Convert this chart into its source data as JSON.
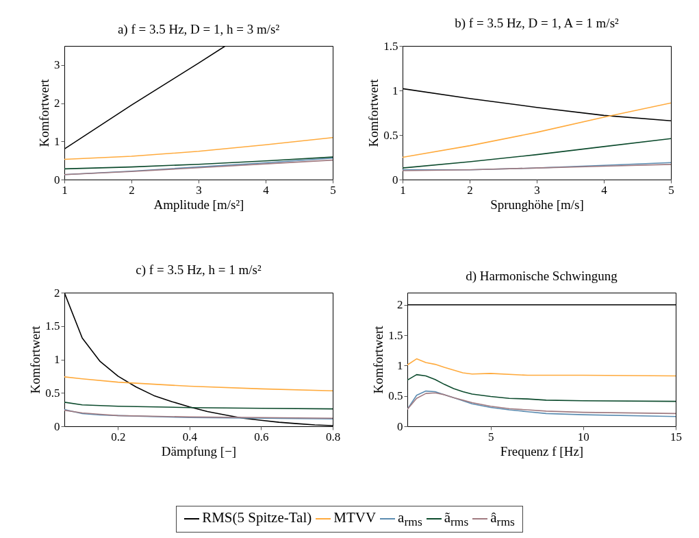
{
  "chart_data": [
    {
      "type": "line",
      "title": "a) f = 3.5 Hz, D = 1, h = 3 m/s²",
      "xlabel": "Amplitude [m/s²]",
      "ylabel": "Komfortwert",
      "xlim": [
        1,
        5
      ],
      "xticks": [
        1,
        2,
        3,
        4,
        5
      ],
      "ylim": [
        0,
        3.5
      ],
      "yticks": [
        0,
        1,
        2,
        3
      ],
      "legend": "bottom",
      "series": [
        {
          "name": "RMS(5 Spitze-Tal)",
          "color": "#000000",
          "x": [
            1,
            2,
            3,
            3.4
          ],
          "values": [
            0.8,
            1.95,
            3.05,
            3.5
          ]
        },
        {
          "name": "MTVV",
          "color": "#ffaa3c",
          "x": [
            1,
            2,
            3,
            4,
            5
          ],
          "values": [
            0.53,
            0.61,
            0.74,
            0.91,
            1.1
          ]
        },
        {
          "name": "a$_{rms}$",
          "color": "#5a8bb0",
          "x": [
            1,
            2,
            3,
            4,
            5
          ],
          "values": [
            0.13,
            0.22,
            0.33,
            0.44,
            0.56
          ]
        },
        {
          "name": "ã$_{rms}$",
          "color": "#0b4a2c",
          "x": [
            1,
            2,
            3,
            4,
            5
          ],
          "values": [
            0.28,
            0.33,
            0.4,
            0.49,
            0.59
          ]
        },
        {
          "name": "â$_{rms}$",
          "color": "#a07a80",
          "x": [
            1,
            2,
            3,
            4,
            5
          ],
          "values": [
            0.13,
            0.21,
            0.31,
            0.41,
            0.51
          ]
        }
      ]
    },
    {
      "type": "line",
      "title": "b) f = 3.5 Hz, D = 1, A = 1 m/s²",
      "xlabel": "Sprunghöhe [m/s]",
      "ylabel": "Komfortwert",
      "xlim": [
        1,
        5
      ],
      "xticks": [
        1,
        2,
        3,
        4,
        5
      ],
      "ylim": [
        0,
        1.5
      ],
      "yticks": [
        0,
        0.5,
        1,
        1.5
      ],
      "legend": "bottom",
      "series": [
        {
          "name": "RMS(5 Spitze-Tal)",
          "color": "#000000",
          "x": [
            1,
            2,
            3,
            4,
            5
          ],
          "values": [
            1.02,
            0.91,
            0.81,
            0.72,
            0.66
          ]
        },
        {
          "name": "MTVV",
          "color": "#ffaa3c",
          "x": [
            1,
            2,
            3,
            4,
            5
          ],
          "values": [
            0.25,
            0.38,
            0.53,
            0.7,
            0.86
          ]
        },
        {
          "name": "a$_{rms}$",
          "color": "#5a8bb0",
          "x": [
            1,
            2,
            3,
            4,
            5
          ],
          "values": [
            0.11,
            0.11,
            0.13,
            0.16,
            0.19
          ]
        },
        {
          "name": "ã$_{rms}$",
          "color": "#0b4a2c",
          "x": [
            1,
            2,
            3,
            4,
            5
          ],
          "values": [
            0.13,
            0.2,
            0.28,
            0.37,
            0.46
          ]
        },
        {
          "name": "â$_{rms}$",
          "color": "#a07a80",
          "x": [
            1,
            2,
            3,
            4,
            5
          ],
          "values": [
            0.1,
            0.11,
            0.13,
            0.15,
            0.17
          ]
        }
      ]
    },
    {
      "type": "line",
      "title": "c) f = 3.5 Hz, h = 1 m/s²",
      "xlabel": "Dämpfung [−]",
      "ylabel": "Komfortwert",
      "xlim": [
        0.05,
        0.8
      ],
      "xticks": [
        0.2,
        0.4,
        0.6,
        0.8
      ],
      "ylim": [
        0,
        2
      ],
      "yticks": [
        0,
        0.5,
        1,
        1.5,
        2
      ],
      "legend": "bottom",
      "series": [
        {
          "name": "RMS(5 Spitze-Tal)",
          "color": "#000000",
          "x": [
            0.05,
            0.1,
            0.15,
            0.2,
            0.25,
            0.3,
            0.35,
            0.4,
            0.45,
            0.5,
            0.55,
            0.6,
            0.65,
            0.7,
            0.75,
            0.8
          ],
          "values": [
            2,
            1.32,
            0.97,
            0.75,
            0.59,
            0.46,
            0.37,
            0.29,
            0.22,
            0.17,
            0.12,
            0.09,
            0.06,
            0.04,
            0.02,
            0.01
          ]
        },
        {
          "name": "MTVV",
          "color": "#ffaa3c",
          "x": [
            0.05,
            0.1,
            0.2,
            0.4,
            0.6,
            0.8
          ],
          "values": [
            0.74,
            0.71,
            0.66,
            0.6,
            0.56,
            0.53
          ]
        },
        {
          "name": "a$_{rms}$",
          "color": "#5a8bb0",
          "x": [
            0.05,
            0.1,
            0.15,
            0.2,
            0.4,
            0.6,
            0.8
          ],
          "values": [
            0.25,
            0.19,
            0.17,
            0.16,
            0.13,
            0.12,
            0.11
          ]
        },
        {
          "name": "ã$_{rms}$",
          "color": "#0b4a2c",
          "x": [
            0.05,
            0.1,
            0.2,
            0.4,
            0.6,
            0.8
          ],
          "values": [
            0.36,
            0.32,
            0.3,
            0.28,
            0.27,
            0.26
          ]
        },
        {
          "name": "â$_{rms}$",
          "color": "#a07a80",
          "x": [
            0.05,
            0.1,
            0.15,
            0.2,
            0.4,
            0.6,
            0.8
          ],
          "values": [
            0.24,
            0.2,
            0.18,
            0.16,
            0.14,
            0.13,
            0.12
          ]
        }
      ]
    },
    {
      "type": "line",
      "title": "d) Harmonische Schwingung",
      "xlabel": "Frequenz f [Hz]",
      "ylabel": "Komfortwert",
      "xlim": [
        0.5,
        15
      ],
      "xticks": [
        5,
        10,
        15
      ],
      "ylim": [
        0,
        2.2
      ],
      "yticks": [
        0,
        0.5,
        1,
        1.5,
        2
      ],
      "legend": "bottom",
      "series": [
        {
          "name": "RMS(5 Spitze-Tal)",
          "color": "#000000",
          "x": [
            0.5,
            15
          ],
          "values": [
            2,
            2
          ]
        },
        {
          "name": "MTVV",
          "color": "#ffaa3c",
          "x": [
            0.5,
            1,
            1.5,
            2,
            2.5,
            3.5,
            4,
            5,
            7,
            10,
            15
          ],
          "values": [
            1.01,
            1.11,
            1.05,
            1.02,
            0.97,
            0.88,
            0.86,
            0.87,
            0.84,
            0.84,
            0.83
          ]
        },
        {
          "name": "a$_{rms}$",
          "color": "#5a8bb0",
          "x": [
            0.5,
            1,
            1.5,
            2,
            2.5,
            3,
            3.5,
            4,
            5,
            6,
            7,
            8,
            10,
            15
          ],
          "values": [
            0.28,
            0.51,
            0.58,
            0.57,
            0.52,
            0.47,
            0.42,
            0.37,
            0.31,
            0.27,
            0.24,
            0.21,
            0.19,
            0.16
          ]
        },
        {
          "name": "ã$_{rms}$",
          "color": "#0b4a2c",
          "x": [
            0.5,
            1,
            1.5,
            2,
            2.5,
            3,
            3.5,
            4,
            5,
            6,
            7,
            8,
            10,
            15
          ],
          "values": [
            0.76,
            0.85,
            0.83,
            0.77,
            0.69,
            0.62,
            0.57,
            0.53,
            0.49,
            0.46,
            0.45,
            0.43,
            0.42,
            0.41
          ]
        },
        {
          "name": "â$_{rms}$",
          "color": "#a07a80",
          "x": [
            0.5,
            1,
            1.5,
            2,
            2.5,
            3,
            3.5,
            4,
            5,
            6,
            7,
            8,
            10,
            15
          ],
          "values": [
            0.28,
            0.46,
            0.54,
            0.55,
            0.52,
            0.47,
            0.43,
            0.39,
            0.33,
            0.29,
            0.27,
            0.25,
            0.23,
            0.21
          ]
        }
      ]
    }
  ]
}
